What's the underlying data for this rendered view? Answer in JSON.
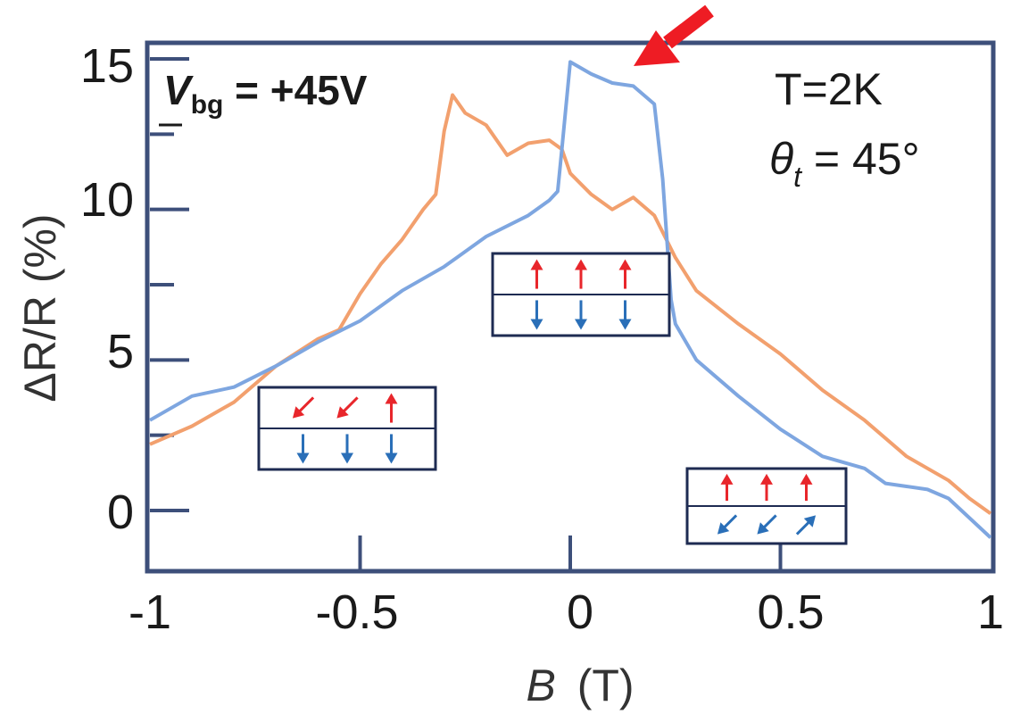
{
  "chart_data": {
    "type": "line",
    "xlabel_italic": "B",
    "xlabel_unit": "(T)",
    "ylabel": "ΔR/R (%)",
    "xlim": [
      -1,
      1
    ],
    "ylim": [
      -2,
      15.5
    ],
    "xticks": [
      -1,
      -0.5,
      0,
      0.5,
      1
    ],
    "xtick_labels": [
      "-1",
      "-0.5",
      "0",
      "0.5",
      "1"
    ],
    "yticks": [
      0,
      5,
      10,
      15
    ],
    "ytick_labels": [
      "0",
      "5",
      "10",
      "15"
    ],
    "grid": false,
    "annotations": {
      "vbg": {
        "v": "V",
        "sub": "bg",
        "rest": " = +45V"
      },
      "temp": "T=2K",
      "theta": {
        "symbol": "θ",
        "sub": "t",
        "rest": " = 45°"
      }
    },
    "series": [
      {
        "color": "#f2a06e",
        "x": [
          -1.0,
          -0.9,
          -0.8,
          -0.7,
          -0.6,
          -0.55,
          -0.5,
          -0.45,
          -0.4,
          -0.35,
          -0.32,
          -0.3,
          -0.28,
          -0.25,
          -0.2,
          -0.15,
          -0.1,
          -0.05,
          -0.02,
          0.0,
          0.05,
          0.1,
          0.15,
          0.2,
          0.25,
          0.3,
          0.4,
          0.5,
          0.6,
          0.7,
          0.8,
          0.9,
          0.95,
          1.0
        ],
        "y": [
          2.2,
          2.8,
          3.6,
          4.8,
          5.7,
          6.0,
          7.2,
          8.2,
          9.0,
          10.0,
          10.5,
          12.6,
          13.8,
          13.2,
          12.8,
          11.8,
          12.2,
          12.3,
          12.0,
          11.2,
          10.5,
          10.0,
          10.4,
          9.8,
          8.4,
          7.3,
          6.2,
          5.2,
          4.0,
          3.0,
          1.8,
          1.0,
          0.4,
          -0.1
        ]
      },
      {
        "color": "#7ea6e0",
        "x": [
          -1.0,
          -0.9,
          -0.8,
          -0.7,
          -0.6,
          -0.5,
          -0.4,
          -0.3,
          -0.2,
          -0.1,
          -0.05,
          -0.03,
          -0.02,
          0.0,
          0.05,
          0.1,
          0.15,
          0.2,
          0.22,
          0.24,
          0.25,
          0.3,
          0.4,
          0.5,
          0.6,
          0.7,
          0.75,
          0.8,
          0.85,
          0.9,
          1.0
        ],
        "y": [
          3.0,
          3.8,
          4.1,
          4.8,
          5.6,
          6.3,
          7.3,
          8.1,
          9.1,
          9.8,
          10.3,
          10.6,
          12.0,
          14.9,
          14.5,
          14.2,
          14.1,
          13.5,
          11.0,
          7.0,
          6.2,
          5.0,
          3.8,
          2.7,
          1.8,
          1.4,
          0.9,
          0.8,
          0.7,
          0.4,
          -0.9
        ]
      }
    ],
    "insets": [
      {
        "name": "inset-antiparallel",
        "top": [
          "down-left",
          "down-left",
          "up"
        ],
        "bottom": [
          "down",
          "down",
          "down"
        ]
      },
      {
        "name": "inset-canted-middle",
        "top": [
          "up",
          "up",
          "up"
        ],
        "bottom": [
          "down",
          "down",
          "down"
        ]
      },
      {
        "name": "inset-aligned-right",
        "top": [
          "up",
          "up",
          "up"
        ],
        "bottom": [
          "down-left",
          "down-left",
          "up-right"
        ]
      }
    ]
  }
}
